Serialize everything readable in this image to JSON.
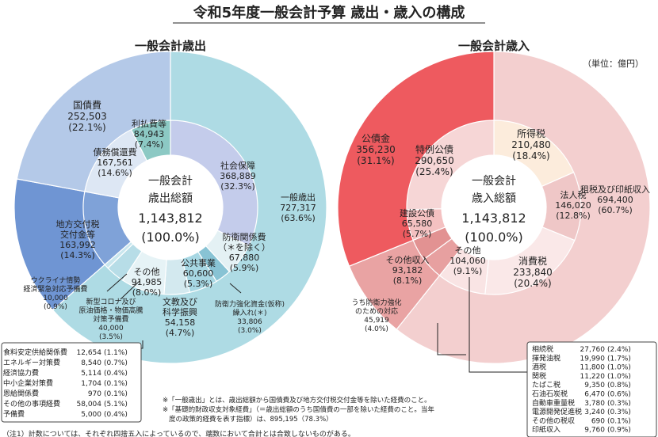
{
  "title": "令和5年度一般会計予算 歳出・歳入の構成",
  "unit_note": "（単位：億円）",
  "chart_data": [
    {
      "type": "pie",
      "title": "一般会計歳出",
      "center": {
        "line1": "一般会計",
        "line2": "歳出総額",
        "line3": "1,143,812",
        "line4": "(100.0%)"
      },
      "outer_ring": [
        {
          "name": "国債費",
          "value": 252503,
          "label": "国債費",
          "amount": "252,503",
          "pct": "(22.1%)",
          "color": "#b4c9e8"
        },
        {
          "name": "地方交付税交付金等",
          "value": 163992,
          "label": "地方交付税\n交付金等",
          "amount": "163,992",
          "pct": "(14.3%)",
          "color": "#6f95d3"
        },
        {
          "name": "一般歳出",
          "value": 727317,
          "label": "一般歳出",
          "amount": "727,317",
          "pct": "(63.6%)",
          "color": "#aedbe4"
        }
      ],
      "inner_ring": [
        {
          "name": "債務償還費",
          "value": 167561,
          "label": "債務償還費",
          "amount": "167,561",
          "pct": "(14.6%)",
          "color": "#dde7f4"
        },
        {
          "name": "利払費等",
          "value": 84943,
          "label": "利払費等",
          "amount": "84,943",
          "pct": "(7.4%)",
          "color": "#8cc9c4"
        },
        {
          "name": "社会保障",
          "value": 368889,
          "label": "社会保障",
          "amount": "368,889",
          "pct": "(32.3%)",
          "color": "#c4cceb"
        },
        {
          "name": "防衛関係費",
          "value": 67880,
          "label": "防衛関係費\n（＊を除く）",
          "amount": "67,880",
          "pct": "(5.9%)",
          "color": "#e4f1f4"
        },
        {
          "name": "防衛力強化資金(仮称)繰入れ(＊)",
          "value": 33806,
          "label": "防衛力強化資金(仮称)\n繰入れ(＊)",
          "amount": "33,806",
          "pct": "(3.0%)",
          "color": "#88c3d4"
        },
        {
          "name": "公共事業",
          "value": 60600,
          "label": "公共事業",
          "amount": "60,600",
          "pct": "(5.3%)",
          "color": "#a7d7e3"
        },
        {
          "name": "文教及び科学振興",
          "value": 54158,
          "label": "文教及び\n科学振興",
          "amount": "54,158",
          "pct": "(4.7%)",
          "color": "#d3e9ef"
        },
        {
          "name": "その他",
          "value": 91985,
          "label": "その他",
          "amount": "91,985",
          "pct": "(8.0%)",
          "color": "#e6f3f6"
        },
        {
          "name": "新型コロナ及び原油価格・物価高騰対策予備費",
          "value": 40000,
          "label": "新型コロナ及び\n原油価格・物価高騰\n対策予備費",
          "amount": "40,000",
          "pct": "(3.5%)",
          "color": "#b7dde7"
        },
        {
          "name": "ウクライナ情勢経済緊急対応予備費",
          "value": 10000,
          "label": "ウクライナ情勢\n経済緊急対応予備費",
          "amount": "10,000",
          "pct": "(0.9%)",
          "color": "#c9e6ee"
        },
        {
          "name": "地方交付税交付金等",
          "value": 163992,
          "label": "",
          "amount": "",
          "pct": "",
          "color": "#7fa2d8"
        }
      ],
      "breakdown": [
        {
          "name": "食料安定供給関係費",
          "amount": "12,654",
          "pct": "(1.1%)"
        },
        {
          "name": "エネルギー対策費",
          "amount": "8,540",
          "pct": "(0.7%)"
        },
        {
          "name": "経済協力費",
          "amount": "5,114",
          "pct": "(0.4%)"
        },
        {
          "name": "中小企業対策費",
          "amount": "1,704",
          "pct": "(0.1%)"
        },
        {
          "name": "恩給関係費",
          "amount": "970",
          "pct": "(0.1%)"
        },
        {
          "name": "その他の事項経費",
          "amount": "58,004",
          "pct": "(5.1%)"
        },
        {
          "name": "予備費",
          "amount": "5,000",
          "pct": "(0.4%)"
        }
      ]
    },
    {
      "type": "pie",
      "title": "一般会計歳入",
      "center": {
        "line1": "一般会計",
        "line2": "歳入総額",
        "line3": "1,143,812",
        "line4": "(100.0%)"
      },
      "outer_ring": [
        {
          "name": "租税及び印紙収入",
          "value": 694400,
          "label": "租税及び印紙収入",
          "amount": "694,400",
          "pct": "(60.7%)",
          "color": "#f3cfcf"
        },
        {
          "name": "その他収入",
          "value": 93182,
          "label": "その他収入",
          "amount": "93,182",
          "pct": "(8.1%)",
          "color": "#e9a3a3"
        },
        {
          "name": "公債金",
          "value": 356230,
          "label": "公債金",
          "amount": "356,230",
          "pct": "(31.1%)",
          "color": "#ee5a5f"
        }
      ],
      "inner_ring": [
        {
          "name": "所得税",
          "value": 210480,
          "label": "所得税",
          "amount": "210,480",
          "pct": "(18.4%)",
          "color": "#fcecdc"
        },
        {
          "name": "法人税",
          "value": 146020,
          "label": "法人税",
          "amount": "146,020",
          "pct": "(12.8%)",
          "color": "#efc7c7"
        },
        {
          "name": "消費税",
          "value": 233840,
          "label": "消費税",
          "amount": "233,840",
          "pct": "(20.4%)",
          "color": "#fae8e8"
        },
        {
          "name": "その他",
          "value": 104060,
          "label": "その他",
          "amount": "104,060",
          "pct": "(9.1%)",
          "color": "#f9e4e4"
        },
        {
          "name": "その他収入",
          "value": 47263,
          "label": "",
          "amount": "",
          "pct": "",
          "color": "#e7a0a0"
        },
        {
          "name": "うち防衛力強化のための対応",
          "value": 45919,
          "label": "うち防衛力強化\nのための対応",
          "amount": "45,919",
          "pct": "(4.0%)",
          "color": "#e29292"
        },
        {
          "name": "建設公債",
          "value": 65580,
          "label": "建設公債",
          "amount": "65,580",
          "pct": "(5.7%)",
          "color": "#f4c1c1"
        },
        {
          "name": "特例公債",
          "value": 290650,
          "label": "特例公債",
          "amount": "290,650",
          "pct": "(25.4%)",
          "color": "#f6d6d6"
        }
      ],
      "breakdown": [
        {
          "name": "相続税",
          "amount": "27,760",
          "pct": "(2.4%)"
        },
        {
          "name": "揮発油税",
          "amount": "19,990",
          "pct": "(1.7%)"
        },
        {
          "name": "酒税",
          "amount": "11,800",
          "pct": "(1.0%)"
        },
        {
          "name": "関税",
          "amount": "11,220",
          "pct": "(1.0%)"
        },
        {
          "name": "たばこ税",
          "amount": "9,350",
          "pct": "(0.8%)"
        },
        {
          "name": "石油石炭税",
          "amount": "6,470",
          "pct": "(0.6%)"
        },
        {
          "name": "自動車重量税",
          "amount": "3,780",
          "pct": "(0.3%)"
        },
        {
          "name": "電源開発促進税",
          "amount": "3,240",
          "pct": "(0.3%)"
        },
        {
          "name": "その他の税収",
          "amount": "690",
          "pct": "(0.1%)"
        },
        {
          "name": "印紙収入",
          "amount": "9,760",
          "pct": "(0.9%)"
        }
      ]
    }
  ],
  "notes": [
    "※「一般歳出」とは、歳出総額から国債費及び地方交付税交付金等を除いた経費のこと。",
    "※「基礎的財政収支対象経費」（＝歳出総額のうち国債費の一部を除いた経費のこと。当年",
    "度の政策的経費を表す指標）は、895,195（78.3%）"
  ],
  "footnote": "（注1）計数については、それぞれ四捨五入によっているので、端数において合計とは合致しないものがある。"
}
